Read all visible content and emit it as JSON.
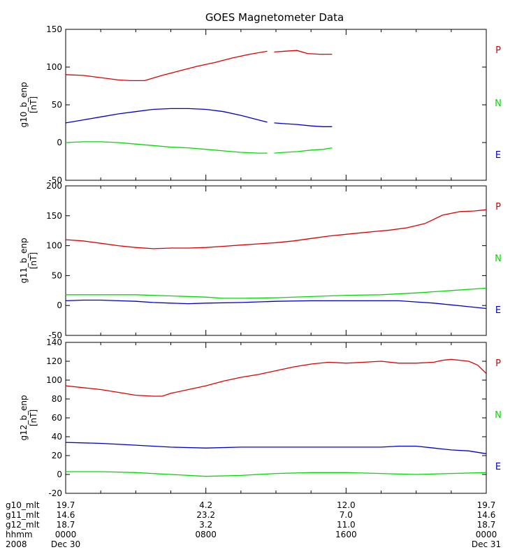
{
  "title": "GOES Magnetometer Data",
  "colors": {
    "P": "#dd0000",
    "N": "#00dd00",
    "E": "#0000cc"
  },
  "component_labels": [
    "P",
    "N",
    "E"
  ],
  "chart_data": [
    {
      "type": "line",
      "ylabel": "g10_b_enp",
      "yunit": "[nT]",
      "ylim": [
        -50,
        150
      ],
      "yticks": [
        "-50",
        "0",
        "50",
        "100",
        "150"
      ],
      "xlim": [
        0,
        24
      ],
      "series": [
        {
          "name": "P",
          "color": "#dd0000",
          "segments": [
            {
              "x": [
                0,
                1,
                2,
                3,
                3.7,
                4.5,
                5.5,
                6.5,
                7.5,
                8.5,
                9.5,
                10.5,
                11.5
              ],
              "y": [
                90,
                89,
                86,
                83,
                82,
                82,
                89,
                95,
                101,
                106,
                112,
                117,
                121
              ]
            },
            {
              "x": [
                11.9,
                12.5,
                13.2,
                13.8,
                14.5,
                15.2
              ],
              "y": [
                120,
                121,
                122,
                118,
                117,
                117
              ]
            }
          ]
        },
        {
          "name": "E",
          "color": "#0000cc",
          "segments": [
            {
              "x": [
                0,
                1,
                2,
                3,
                4,
                5,
                6,
                7,
                8,
                9,
                10,
                11,
                11.5
              ],
              "y": [
                26,
                30,
                34,
                38,
                41,
                44,
                45,
                45,
                44,
                41,
                36,
                30,
                27
              ]
            },
            {
              "x": [
                11.9,
                12.5,
                13.2,
                14,
                14.7,
                15.2
              ],
              "y": [
                26,
                25,
                24,
                22,
                21,
                21
              ]
            }
          ]
        },
        {
          "name": "N",
          "color": "#00dd00",
          "segments": [
            {
              "x": [
                0,
                1,
                2,
                3,
                4,
                5,
                6,
                7,
                8,
                9,
                10,
                11,
                11.5
              ],
              "y": [
                0,
                1,
                1,
                0,
                -2,
                -4,
                -6,
                -7,
                -9,
                -11,
                -13,
                -14,
                -14
              ]
            },
            {
              "x": [
                11.9,
                12.5,
                13.2,
                14,
                14.7,
                15.2
              ],
              "y": [
                -14,
                -13,
                -12,
                -10,
                -9,
                -7
              ]
            }
          ]
        }
      ]
    },
    {
      "type": "line",
      "ylabel": "g11_b_enp",
      "yunit": "[nT]",
      "ylim": [
        -50,
        200
      ],
      "yticks": [
        "-50",
        "0",
        "50",
        "100",
        "150",
        "200"
      ],
      "xlim": [
        0,
        24
      ],
      "series": [
        {
          "name": "P",
          "color": "#dd0000",
          "segments": [
            {
              "x": [
                0,
                1,
                2,
                3,
                4,
                5,
                6,
                7,
                8,
                9,
                10,
                11,
                12,
                13,
                14,
                15,
                16,
                17,
                17.7,
                18.5,
                19.5,
                20.5,
                21.5,
                22.5,
                23.3,
                24
              ],
              "y": [
                110,
                108,
                104,
                100,
                97,
                95,
                96,
                96,
                97,
                99,
                101,
                103,
                105,
                108,
                112,
                116,
                119,
                122,
                124,
                126,
                130,
                137,
                151,
                157,
                158,
                160
              ]
            }
          ]
        },
        {
          "name": "N",
          "color": "#00dd00",
          "segments": [
            {
              "x": [
                0,
                2,
                4,
                6,
                8,
                9,
                10,
                12,
                14,
                16,
                18,
                20,
                22,
                24
              ],
              "y": [
                18,
                18,
                18,
                16,
                14,
                12,
                12,
                13,
                15,
                17,
                18,
                21,
                25,
                29
              ]
            }
          ]
        },
        {
          "name": "E",
          "color": "#0000cc",
          "segments": [
            {
              "x": [
                0,
                1,
                2,
                3,
                4,
                5,
                6,
                7,
                8,
                10,
                12,
                14,
                16,
                18,
                19,
                20,
                21,
                22,
                23,
                24
              ],
              "y": [
                8,
                9,
                9,
                8,
                7,
                5,
                4,
                3,
                4,
                5,
                7,
                8,
                8,
                8,
                8,
                6,
                4,
                1,
                -2,
                -5
              ]
            }
          ]
        }
      ]
    },
    {
      "type": "line",
      "ylabel": "g12_b_enp",
      "yunit": "[nT]",
      "ylim": [
        -20,
        140
      ],
      "yticks": [
        "-20",
        "0",
        "20",
        "40",
        "60",
        "80",
        "100",
        "120",
        "140"
      ],
      "xlim": [
        0,
        24
      ],
      "series": [
        {
          "name": "P",
          "color": "#dd0000",
          "segments": [
            {
              "x": [
                0,
                1,
                2,
                3,
                4,
                5,
                5.5,
                6,
                7,
                8,
                9,
                10,
                11,
                12,
                13,
                14,
                15,
                16,
                17,
                18,
                19,
                20,
                21,
                21.5,
                22,
                22.5,
                23,
                23.5,
                24
              ],
              "y": [
                94,
                92,
                90,
                87,
                84,
                83,
                83,
                86,
                90,
                94,
                99,
                103,
                106,
                110,
                114,
                117,
                119,
                118,
                119,
                120,
                118,
                118,
                119,
                121,
                122,
                121,
                120,
                116,
                107
              ]
            }
          ]
        },
        {
          "name": "E",
          "color": "#0000cc",
          "segments": [
            {
              "x": [
                0,
                2,
                4,
                6,
                8,
                10,
                12,
                14,
                16,
                18,
                19,
                20,
                21,
                22,
                23,
                24
              ],
              "y": [
                34,
                33,
                31,
                29,
                28,
                29,
                29,
                29,
                29,
                29,
                30,
                30,
                28,
                26,
                25,
                22
              ]
            }
          ]
        },
        {
          "name": "N",
          "color": "#00dd00",
          "segments": [
            {
              "x": [
                0,
                2,
                4,
                6,
                8,
                10,
                12,
                14,
                16,
                18,
                20,
                22,
                24
              ],
              "y": [
                3,
                3,
                2,
                0,
                -2,
                -1,
                1,
                2,
                2,
                1,
                0,
                1,
                2
              ]
            }
          ]
        }
      ]
    }
  ],
  "xaxis": {
    "row_labels": [
      "g10_mlt",
      "g11_mlt",
      "g12_mlt",
      "hhmm",
      "2008"
    ],
    "ticks": [
      {
        "x": 0,
        "values": [
          "19.7",
          "14.6",
          "18.7",
          "0000",
          "Dec 30"
        ]
      },
      {
        "x": 8,
        "values": [
          "4.2",
          "23.2",
          "3.2",
          "0800",
          ""
        ]
      },
      {
        "x": 16,
        "values": [
          "12.0",
          "7.0",
          "11.0",
          "1600",
          ""
        ]
      },
      {
        "x": 24,
        "values": [
          "19.7",
          "14.6",
          "18.7",
          "0000",
          "Dec 31"
        ]
      }
    ]
  }
}
